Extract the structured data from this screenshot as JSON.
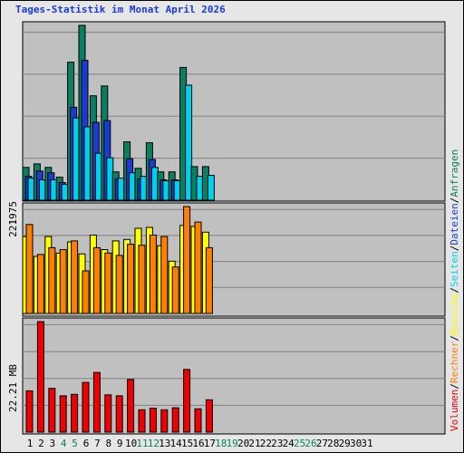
{
  "title": "Tages-Statistik im Monat April 2026",
  "chart_data": {
    "type": "bar",
    "categories": [
      "1",
      "2",
      "3",
      "4",
      "5",
      "6",
      "7",
      "8",
      "9",
      "10",
      "11",
      "12",
      "13",
      "14",
      "15",
      "16",
      "17",
      "18",
      "19",
      "20",
      "21",
      "22",
      "23",
      "24",
      "25",
      "26",
      "27",
      "28",
      "29",
      "30",
      "31"
    ],
    "weekend_days": [
      "4",
      "5",
      "11",
      "12",
      "18",
      "19",
      "25",
      "26"
    ],
    "panels": [
      {
        "name": "top",
        "max_label": "1975",
        "max": 1975,
        "series": [
          {
            "name": "Anfragen",
            "color": "#0b8060",
            "values": [
              370,
              410,
              370,
              260,
              1560,
              1975,
              1180,
              1290,
              320,
              660,
              360,
              650,
              320,
              320,
              1500,
              380,
              380,
              0,
              0,
              0,
              0,
              0,
              0,
              0,
              0,
              0,
              0,
              0,
              0,
              0,
              0
            ]
          },
          {
            "name": "Dateien",
            "color": "#1a3cd2",
            "values": [
              270,
              330,
              310,
              200,
              1050,
              1580,
              880,
              900,
              240,
              470,
              240,
              460,
              230,
              230,
              0,
              0,
              0,
              0,
              0,
              0,
              0,
              0,
              0,
              0,
              0,
              0,
              0,
              0,
              0,
              0,
              0
            ]
          },
          {
            "name": "Seiten",
            "color": "#00d0f0",
            "values": [
              250,
              230,
              230,
              180,
              930,
              830,
              530,
              480,
              250,
              310,
              270,
              370,
              220,
              220,
              1300,
              270,
              280,
              0,
              0,
              0,
              0,
              0,
              0,
              0,
              0,
              0,
              0,
              0,
              0,
              0,
              0
            ]
          }
        ]
      },
      {
        "name": "middle",
        "max_label": "221",
        "max": 221,
        "series": [
          {
            "name": "Besuche",
            "color": "#ffff00",
            "values": [
              159,
              118,
              159,
              125,
              148,
              123,
              162,
              132,
              150,
              153,
              176,
              178,
              140,
              108,
              182,
              180,
              168,
              0,
              0,
              0,
              0,
              0,
              0,
              0,
              0,
              0,
              0,
              0,
              0,
              0,
              0
            ]
          },
          {
            "name": "Rechner",
            "color": "#ff8000",
            "values": [
              184,
              122,
              136,
              132,
              150,
              88,
              136,
              125,
              120,
              143,
              141,
              162,
              159,
              96,
              221,
              189,
              136,
              0,
              0,
              0,
              0,
              0,
              0,
              0,
              0,
              0,
              0,
              0,
              0,
              0,
              0
            ]
          }
        ]
      },
      {
        "name": "bottom",
        "max_label": "22.21 MB",
        "max": 22.21,
        "series": [
          {
            "name": "Volumen",
            "color": "#f00000",
            "values": [
              8.3,
              22.21,
              8.8,
              7.3,
              7.6,
              10.0,
              12.0,
              7.5,
              7.3,
              10.6,
              4.5,
              4.8,
              4.5,
              4.9,
              12.6,
              4.7,
              6.5,
              0,
              0,
              0,
              0,
              0,
              0,
              0,
              0,
              0,
              0,
              0,
              0,
              0,
              0
            ]
          }
        ]
      }
    ],
    "legend": [
      "Volumen",
      "Rechner",
      "Besuche",
      "Seiten",
      "Dateien",
      "Anfragen"
    ],
    "legend_separator": "/",
    "legend_placement": "right-vertical",
    "grid": true
  }
}
